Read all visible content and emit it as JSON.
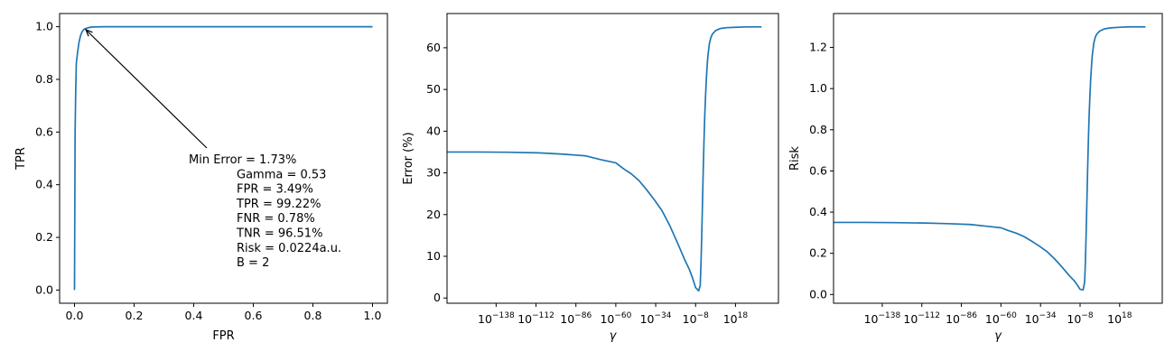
{
  "chart_data": [
    {
      "type": "line",
      "xlabel": "FPR",
      "ylabel": "TPR",
      "xlim": [
        -0.05,
        1.05
      ],
      "ylim": [
        -0.05,
        1.05
      ],
      "xticks": [
        0.0,
        0.2,
        0.4,
        0.6,
        0.8,
        1.0
      ],
      "xtick_labels": [
        "0.0",
        "0.2",
        "0.4",
        "0.6",
        "0.8",
        "1.0"
      ],
      "yticks": [
        0.0,
        0.2,
        0.4,
        0.6,
        0.8,
        1.0
      ],
      "ytick_labels": [
        "0.0",
        "0.2",
        "0.4",
        "0.6",
        "0.8",
        "1.0"
      ],
      "series": [
        {
          "color": "#1f77b4",
          "x": [
            0,
            0.001,
            0.002,
            0.004,
            0.006,
            0.01,
            0.015,
            0.02,
            0.025,
            0.03,
            0.035,
            0.045,
            0.06,
            0.1,
            0.3,
            0.6,
            1.0
          ],
          "y": [
            0,
            0.3,
            0.6,
            0.75,
            0.86,
            0.9,
            0.94,
            0.965,
            0.98,
            0.988,
            0.992,
            0.996,
            0.999,
            1.0,
            1.0,
            1.0,
            1.0
          ]
        }
      ],
      "annotation": {
        "point": [
          0.0349,
          0.9922
        ],
        "lines": [
          "Min Error = 1.73%",
          "Gamma = 0.53",
          "FPR = 3.49%",
          "TPR = 99.22%",
          "FNR = 0.78%",
          "TNR = 96.51%",
          "Risk = 0.0224a.u.",
          "B = 2"
        ]
      }
    },
    {
      "type": "line",
      "xscale": "log",
      "xlabel": "γ",
      "ylabel": "Error (%)",
      "xlim": [
        -170,
        46
      ],
      "ylim": [
        -1.25,
        68.2
      ],
      "xticks": [
        -138,
        -112,
        -86,
        -60,
        -34,
        -8,
        18
      ],
      "yticks": [
        0,
        10,
        20,
        30,
        40,
        50,
        60
      ],
      "ytick_labels": [
        "0",
        "10",
        "20",
        "30",
        "40",
        "50",
        "60"
      ],
      "series": [
        {
          "color": "#1f77b4",
          "x": [
            -170,
            -150,
            -130,
            -110,
            -95,
            -80,
            -70,
            -60,
            -55,
            -50,
            -45,
            -40,
            -35,
            -30,
            -25,
            -20,
            -15,
            -12,
            -10,
            -8,
            -6,
            -5,
            -4.5,
            -4,
            -3.5,
            -3,
            -2.5,
            -2,
            -1.5,
            -1,
            -0.5,
            0,
            1,
            2,
            3,
            5,
            8,
            12,
            18,
            25,
            35
          ],
          "y": [
            35,
            35,
            34.95,
            34.8,
            34.5,
            34.1,
            33.2,
            32.4,
            31,
            29.8,
            28.2,
            26,
            23.6,
            21,
            17.5,
            13.4,
            9.1,
            6.8,
            4.8,
            2.5,
            1.73,
            3,
            8,
            15,
            23,
            31,
            38,
            44,
            48.5,
            52.5,
            55.5,
            58,
            61,
            62.5,
            63.3,
            64.1,
            64.6,
            64.8,
            64.9,
            65,
            65
          ]
        }
      ]
    },
    {
      "type": "line",
      "xscale": "log",
      "xlabel": "γ",
      "ylabel": "Risk",
      "xlim": [
        -170,
        46
      ],
      "ylim": [
        -0.0425,
        1.3645
      ],
      "xticks": [
        -138,
        -112,
        -86,
        -60,
        -34,
        -8,
        18
      ],
      "yticks": [
        0.0,
        0.2,
        0.4,
        0.6,
        0.8,
        1.0,
        1.2
      ],
      "ytick_labels": [
        "0.0",
        "0.2",
        "0.4",
        "0.6",
        "0.8",
        "1.0",
        "1.2"
      ],
      "series": [
        {
          "color": "#1f77b4",
          "x": [
            -170,
            -150,
            -130,
            -110,
            -95,
            -80,
            -70,
            -60,
            -55,
            -50,
            -45,
            -40,
            -35,
            -30,
            -25,
            -20,
            -15,
            -12,
            -10,
            -8,
            -6,
            -5,
            -4.5,
            -4,
            -3.5,
            -3,
            -2.5,
            -2,
            -1.5,
            -1,
            -0.5,
            0,
            1,
            2,
            3,
            5,
            8,
            12,
            18,
            25,
            35
          ],
          "y": [
            0.35,
            0.35,
            0.349,
            0.347,
            0.344,
            0.34,
            0.332,
            0.324,
            0.31,
            0.298,
            0.282,
            0.26,
            0.236,
            0.21,
            0.175,
            0.134,
            0.091,
            0.068,
            0.048,
            0.025,
            0.0224,
            0.06,
            0.16,
            0.3,
            0.46,
            0.62,
            0.76,
            0.88,
            0.97,
            1.05,
            1.11,
            1.16,
            1.22,
            1.25,
            1.265,
            1.28,
            1.29,
            1.295,
            1.298,
            1.3,
            1.3
          ]
        }
      ]
    }
  ]
}
